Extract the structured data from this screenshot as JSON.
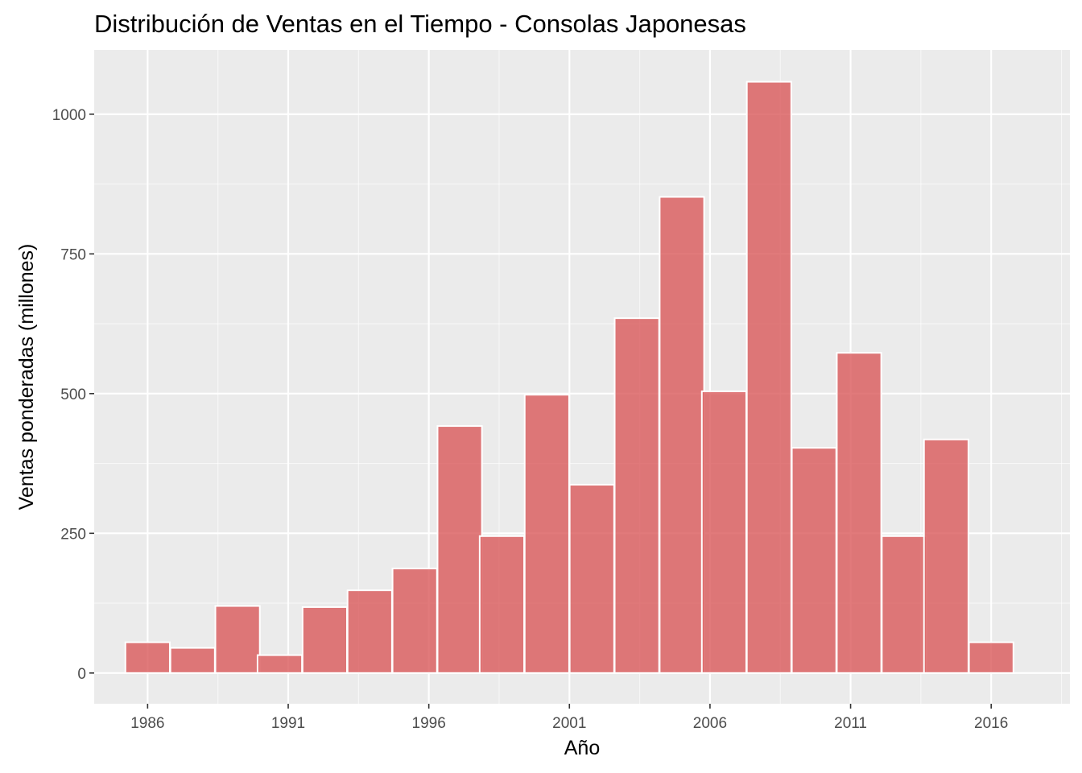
{
  "chart_data": {
    "type": "bar",
    "subtype": "histogram",
    "title": "Distribución de Ventas en el Tiempo - Consolas Japonesas",
    "xlabel": "Año",
    "ylabel": "Ventas ponderadas (millones)",
    "xlim": [
      1984.1,
      2018.8
    ],
    "ylim": [
      -55,
      1115
    ],
    "x_ticks": [
      1986,
      1991,
      1996,
      2001,
      2006,
      2011,
      2016
    ],
    "y_ticks": [
      0,
      250,
      500,
      750,
      1000
    ],
    "bin_width": 1.58,
    "bins": [
      {
        "x": 1986.0,
        "value": 55
      },
      {
        "x": 1987.6,
        "value": 45
      },
      {
        "x": 1989.2,
        "value": 120
      },
      {
        "x": 1990.7,
        "value": 32
      },
      {
        "x": 1992.3,
        "value": 118
      },
      {
        "x": 1993.9,
        "value": 148
      },
      {
        "x": 1995.5,
        "value": 187
      },
      {
        "x": 1997.1,
        "value": 442
      },
      {
        "x": 1998.6,
        "value": 245
      },
      {
        "x": 2000.2,
        "value": 498
      },
      {
        "x": 2001.8,
        "value": 337
      },
      {
        "x": 2003.4,
        "value": 635
      },
      {
        "x": 2005.0,
        "value": 852
      },
      {
        "x": 2006.5,
        "value": 504
      },
      {
        "x": 2008.1,
        "value": 1058
      },
      {
        "x": 2009.7,
        "value": 403
      },
      {
        "x": 2011.3,
        "value": 573
      },
      {
        "x": 2012.9,
        "value": 245
      },
      {
        "x": 2014.4,
        "value": 418
      },
      {
        "x": 2016.0,
        "value": 55
      }
    ],
    "grid": true,
    "colors": {
      "bar_fill": "#d9595a",
      "bar_border": "#ffffff",
      "panel_bg": "#ebebeb",
      "grid": "#ffffff"
    }
  }
}
